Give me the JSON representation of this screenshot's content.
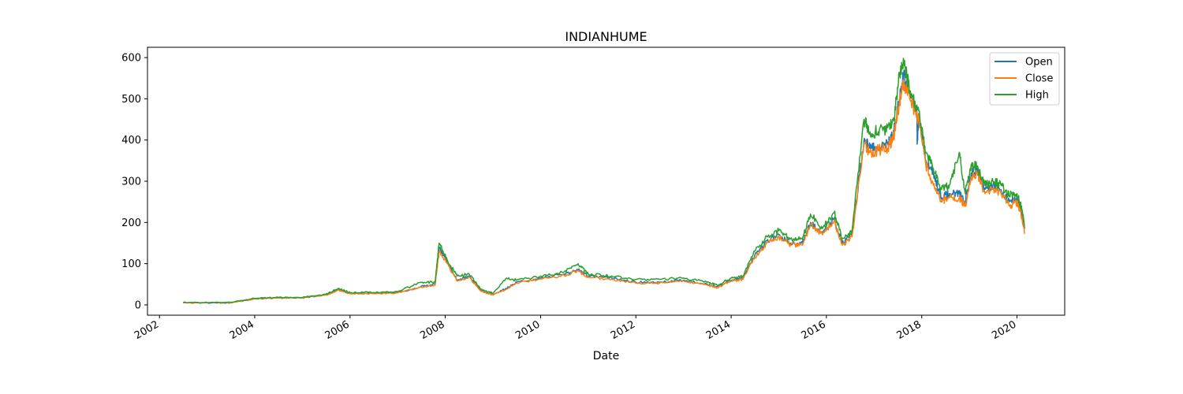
{
  "chart_data": {
    "type": "line",
    "title": "INDIANHUME",
    "xlabel": "Date",
    "ylabel": "",
    "xlim": [
      "2001-10-01",
      "2021-01-01"
    ],
    "ylim": [
      -25,
      625
    ],
    "x_ticks": [
      "2002",
      "2004",
      "2006",
      "2008",
      "2010",
      "2012",
      "2014",
      "2016",
      "2018",
      "2020"
    ],
    "y_ticks": [
      0,
      100,
      200,
      300,
      400,
      500,
      600
    ],
    "grid": false,
    "legend_position": "top-right",
    "colors": {
      "Open": "#1f77b4",
      "Close": "#ff7f0e",
      "High": "#2ca02c"
    },
    "series": [
      {
        "name": "Open",
        "x": [
          "2002-07-01",
          "2003-01-01",
          "2003-07-01",
          "2004-01-01",
          "2004-07-01",
          "2005-01-01",
          "2005-07-01",
          "2005-10-01",
          "2006-01-01",
          "2006-07-01",
          "2007-01-01",
          "2007-07-01",
          "2007-10-15",
          "2007-11-15",
          "2008-01-15",
          "2008-04-01",
          "2008-07-01",
          "2008-10-01",
          "2009-01-01",
          "2009-04-15",
          "2009-07-01",
          "2010-01-01",
          "2010-07-01",
          "2010-10-15",
          "2011-01-01",
          "2011-07-01",
          "2012-01-01",
          "2012-07-01",
          "2013-01-01",
          "2013-07-01",
          "2013-09-15",
          "2014-01-01",
          "2014-04-01",
          "2014-07-01",
          "2014-10-01",
          "2015-01-01",
          "2015-04-01",
          "2015-07-01",
          "2015-09-01",
          "2015-12-01",
          "2016-03-01",
          "2016-05-01",
          "2016-07-15",
          "2016-10-15",
          "2016-12-01",
          "2017-02-01",
          "2017-04-15",
          "2017-06-01",
          "2017-07-15",
          "2017-08-15",
          "2017-10-01",
          "2017-11-25",
          "2017-11-27",
          "2017-12-10",
          "2018-02-01",
          "2018-04-01",
          "2018-06-01",
          "2018-08-01",
          "2018-10-15",
          "2018-12-01",
          "2019-01-15",
          "2019-03-01",
          "2019-05-01",
          "2019-07-01",
          "2019-09-01",
          "2019-11-01",
          "2020-01-01",
          "2020-02-01",
          "2020-03-01"
        ],
        "values": [
          5,
          5,
          5,
          15,
          17,
          17,
          25,
          38,
          28,
          28,
          30,
          45,
          50,
          140,
          105,
          60,
          70,
          35,
          25,
          40,
          55,
          65,
          75,
          85,
          70,
          65,
          55,
          55,
          60,
          50,
          45,
          60,
          65,
          120,
          155,
          170,
          150,
          150,
          200,
          175,
          210,
          150,
          170,
          400,
          380,
          380,
          390,
          420,
          500,
          560,
          510,
          470,
          390,
          460,
          350,
          320,
          260,
          270,
          270,
          250,
          320,
          330,
          280,
          290,
          280,
          250,
          260,
          230,
          185
        ]
      },
      {
        "name": "Close",
        "x": [
          "2002-07-01",
          "2003-01-01",
          "2003-07-01",
          "2004-01-01",
          "2004-07-01",
          "2005-01-01",
          "2005-07-01",
          "2005-10-01",
          "2006-01-01",
          "2006-07-01",
          "2007-01-01",
          "2007-07-01",
          "2007-10-15",
          "2007-11-15",
          "2008-01-15",
          "2008-04-01",
          "2008-07-01",
          "2008-10-01",
          "2009-01-01",
          "2009-04-15",
          "2009-07-01",
          "2010-01-01",
          "2010-07-01",
          "2010-10-15",
          "2011-01-01",
          "2011-07-01",
          "2012-01-01",
          "2012-07-01",
          "2013-01-01",
          "2013-07-01",
          "2013-09-15",
          "2014-01-01",
          "2014-04-01",
          "2014-07-01",
          "2014-10-01",
          "2015-01-01",
          "2015-04-01",
          "2015-07-01",
          "2015-09-01",
          "2015-12-01",
          "2016-03-01",
          "2016-05-01",
          "2016-07-15",
          "2016-10-15",
          "2016-12-01",
          "2017-02-01",
          "2017-04-15",
          "2017-06-01",
          "2017-07-15",
          "2017-08-15",
          "2017-10-01",
          "2017-12-10",
          "2018-02-01",
          "2018-04-01",
          "2018-06-01",
          "2018-08-01",
          "2018-10-15",
          "2018-12-01",
          "2019-01-15",
          "2019-03-01",
          "2019-05-01",
          "2019-07-01",
          "2019-09-01",
          "2019-11-01",
          "2020-01-01",
          "2020-02-01",
          "2020-03-01"
        ],
        "values": [
          5,
          5,
          5,
          15,
          17,
          17,
          24,
          36,
          27,
          27,
          29,
          43,
          48,
          130,
          100,
          58,
          68,
          33,
          24,
          38,
          53,
          63,
          72,
          82,
          67,
          62,
          53,
          53,
          58,
          48,
          42,
          58,
          62,
          115,
          150,
          165,
          145,
          145,
          195,
          170,
          205,
          145,
          165,
          390,
          370,
          375,
          380,
          410,
          490,
          540,
          500,
          450,
          340,
          290,
          250,
          260,
          260,
          240,
          310,
          320,
          270,
          280,
          270,
          240,
          250,
          220,
          175
        ]
      },
      {
        "name": "High",
        "x": [
          "2002-07-01",
          "2003-01-01",
          "2003-07-01",
          "2004-01-01",
          "2004-07-01",
          "2005-01-01",
          "2005-07-01",
          "2005-10-01",
          "2006-01-01",
          "2006-07-01",
          "2007-01-01",
          "2007-07-01",
          "2007-10-15",
          "2007-11-15",
          "2008-01-15",
          "2008-04-01",
          "2008-07-01",
          "2008-10-01",
          "2009-01-01",
          "2009-04-15",
          "2009-07-01",
          "2010-01-01",
          "2010-07-01",
          "2010-10-15",
          "2011-01-01",
          "2011-07-01",
          "2012-01-01",
          "2012-07-01",
          "2013-01-01",
          "2013-07-01",
          "2013-09-15",
          "2014-01-01",
          "2014-04-01",
          "2014-07-01",
          "2014-10-01",
          "2015-01-01",
          "2015-04-01",
          "2015-07-01",
          "2015-09-01",
          "2015-12-01",
          "2016-03-01",
          "2016-05-01",
          "2016-07-15",
          "2016-10-15",
          "2016-12-01",
          "2017-02-01",
          "2017-04-15",
          "2017-06-01",
          "2017-07-15",
          "2017-08-15",
          "2017-10-01",
          "2017-12-10",
          "2018-02-01",
          "2018-04-01",
          "2018-06-01",
          "2018-08-01",
          "2018-10-15",
          "2018-12-01",
          "2019-01-15",
          "2019-03-01",
          "2019-05-01",
          "2019-07-01",
          "2019-09-01",
          "2019-11-01",
          "2020-01-01",
          "2020-02-01",
          "2020-03-01"
        ],
        "values": [
          6,
          6,
          6,
          16,
          18,
          18,
          26,
          40,
          30,
          30,
          32,
          55,
          55,
          150,
          110,
          70,
          75,
          38,
          28,
          65,
          60,
          70,
          80,
          100,
          75,
          70,
          62,
          62,
          65,
          55,
          48,
          65,
          70,
          130,
          165,
          180,
          160,
          160,
          220,
          185,
          225,
          160,
          180,
          450,
          420,
          420,
          430,
          450,
          560,
          595,
          520,
          470,
          370,
          330,
          280,
          290,
          370,
          270,
          340,
          335,
          290,
          300,
          290,
          265,
          270,
          240,
          195
        ]
      }
    ]
  }
}
